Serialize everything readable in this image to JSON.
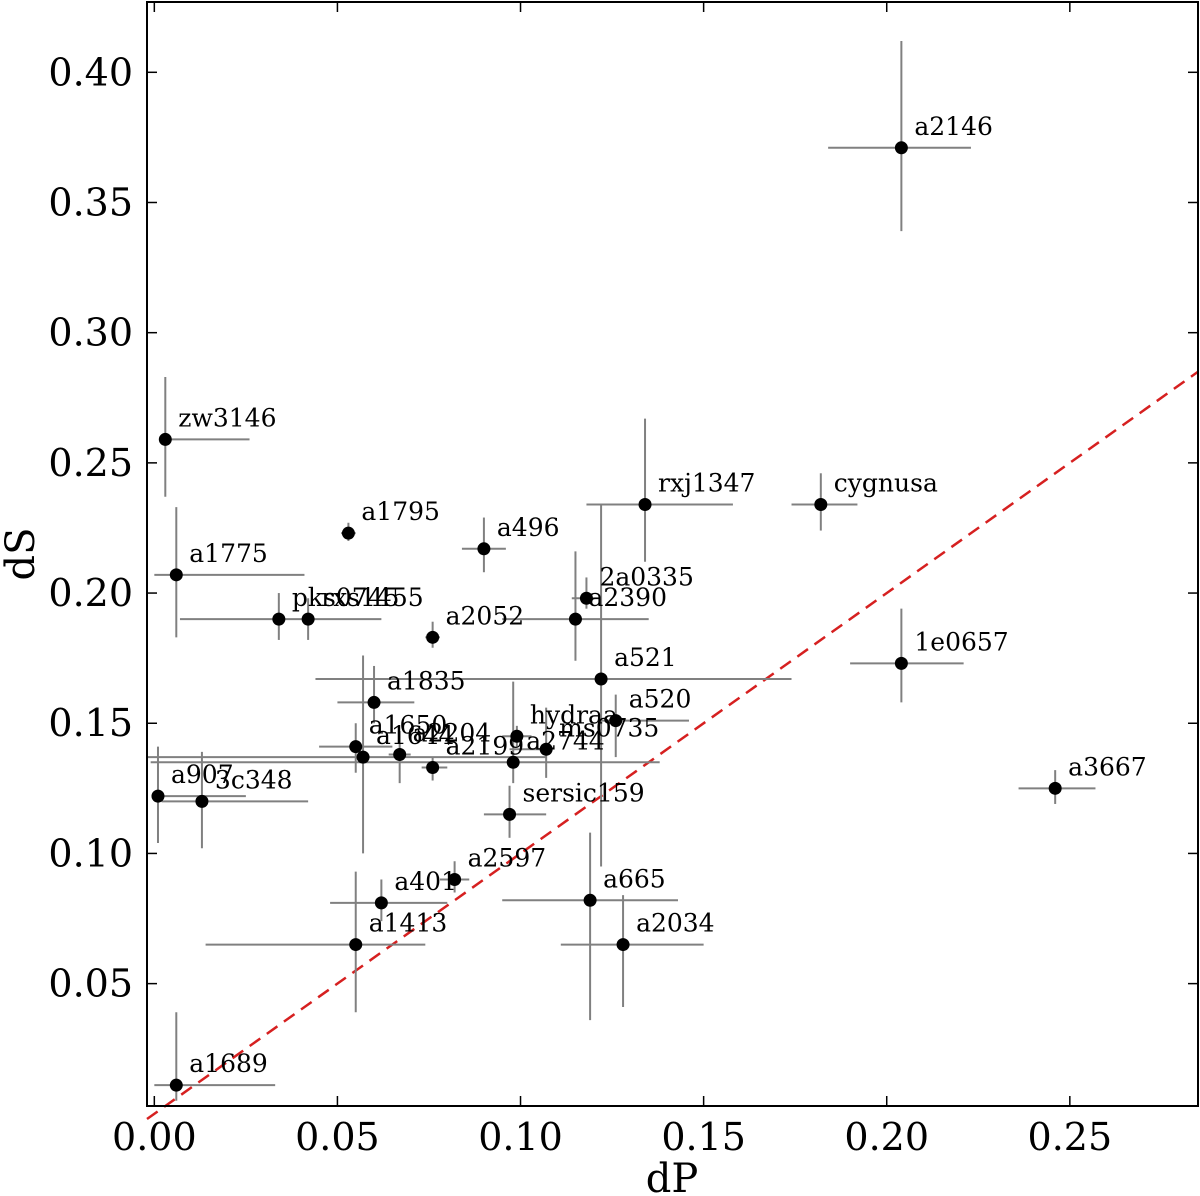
{
  "chart_data": {
    "type": "scatter",
    "title": "",
    "xlabel": "dP",
    "ylabel": "dS",
    "xlim": [
      -0.002,
      0.285
    ],
    "ylim": [
      0.003,
      0.427
    ],
    "xticks": [
      0.0,
      0.05,
      0.1,
      0.15,
      0.2,
      0.25
    ],
    "xtick_labels": [
      "0.00",
      "0.05",
      "0.10",
      "0.15",
      "0.20",
      "0.25"
    ],
    "yticks": [
      0.05,
      0.1,
      0.15,
      0.2,
      0.25,
      0.3,
      0.35,
      0.4
    ],
    "ytick_labels": [
      "0.05",
      "0.10",
      "0.15",
      "0.20",
      "0.25",
      "0.30",
      "0.35",
      "0.40"
    ],
    "grid": false,
    "reference_line": {
      "style": "dashed",
      "color": "#d62020",
      "x": [
        -0.002,
        0.285
      ],
      "y": [
        -0.002,
        0.285
      ]
    },
    "points": [
      {
        "name": "a2146",
        "x": 0.204,
        "y": 0.371,
        "xerr_lo": 0.02,
        "xerr_hi": 0.019,
        "yerr_lo": 0.032,
        "yerr_hi": 0.041
      },
      {
        "name": "zw3146",
        "x": 0.003,
        "y": 0.259,
        "xerr_lo": 0.0,
        "xerr_hi": 0.023,
        "yerr_lo": 0.022,
        "yerr_hi": 0.024
      },
      {
        "name": "rxj1347",
        "x": 0.134,
        "y": 0.234,
        "xerr_lo": 0.016,
        "xerr_hi": 0.024,
        "yerr_lo": 0.022,
        "yerr_hi": 0.033
      },
      {
        "name": "cygnusa",
        "x": 0.182,
        "y": 0.234,
        "xerr_lo": 0.008,
        "xerr_hi": 0.01,
        "yerr_lo": 0.01,
        "yerr_hi": 0.012
      },
      {
        "name": "a1795",
        "x": 0.053,
        "y": 0.223,
        "xerr_lo": 0.002,
        "xerr_hi": 0.002,
        "yerr_lo": 0.003,
        "yerr_hi": 0.004
      },
      {
        "name": "a496",
        "x": 0.09,
        "y": 0.217,
        "xerr_lo": 0.006,
        "xerr_hi": 0.006,
        "yerr_lo": 0.009,
        "yerr_hi": 0.012
      },
      {
        "name": "a1775",
        "x": 0.006,
        "y": 0.207,
        "xerr_lo": 0.006,
        "xerr_hi": 0.035,
        "yerr_lo": 0.024,
        "yerr_hi": 0.026
      },
      {
        "name": "2a0335",
        "x": 0.118,
        "y": 0.198,
        "xerr_lo": 0.004,
        "xerr_hi": 0.004,
        "yerr_lo": 0.004,
        "yerr_hi": 0.008
      },
      {
        "name": "a2390",
        "x": 0.115,
        "y": 0.19,
        "xerr_lo": 0.02,
        "xerr_hi": 0.02,
        "yerr_lo": 0.016,
        "yerr_hi": 0.026
      },
      {
        "name": "pks0745",
        "x": 0.034,
        "y": 0.19,
        "xerr_lo": 0.0,
        "xerr_hi": 0.0,
        "yerr_lo": 0.008,
        "yerr_hi": 0.01
      },
      {
        "name": "rxs1455",
        "x": 0.042,
        "y": 0.19,
        "xerr_lo": 0.035,
        "xerr_hi": 0.02,
        "yerr_lo": 0.008,
        "yerr_hi": 0.008
      },
      {
        "name": "a2052",
        "x": 0.076,
        "y": 0.183,
        "xerr_lo": 0.002,
        "xerr_hi": 0.002,
        "yerr_lo": 0.004,
        "yerr_hi": 0.006
      },
      {
        "name": "1e0657",
        "x": 0.204,
        "y": 0.173,
        "xerr_lo": 0.014,
        "xerr_hi": 0.017,
        "yerr_lo": 0.015,
        "yerr_hi": 0.021
      },
      {
        "name": "a521",
        "x": 0.122,
        "y": 0.167,
        "xerr_lo": 0.078,
        "xerr_hi": 0.052,
        "yerr_lo": 0.072,
        "yerr_hi": 0.067
      },
      {
        "name": "a1835",
        "x": 0.06,
        "y": 0.158,
        "xerr_lo": 0.01,
        "xerr_hi": 0.011,
        "yerr_lo": 0.008,
        "yerr_hi": 0.014
      },
      {
        "name": "a520",
        "x": 0.126,
        "y": 0.151,
        "xerr_lo": 0.005,
        "xerr_hi": 0.02,
        "yerr_lo": 0.014,
        "yerr_hi": 0.01
      },
      {
        "name": "hydraa",
        "x": 0.099,
        "y": 0.145,
        "xerr_lo": 0.004,
        "xerr_hi": 0.004,
        "yerr_lo": 0.004,
        "yerr_hi": 0.004
      },
      {
        "name": "ms0735",
        "x": 0.107,
        "y": 0.14,
        "xerr_lo": 0.01,
        "xerr_hi": 0.0,
        "yerr_lo": 0.011,
        "yerr_hi": 0.016
      },
      {
        "name": "a1650",
        "x": 0.055,
        "y": 0.141,
        "xerr_lo": 0.01,
        "xerr_hi": 0.01,
        "yerr_lo": 0.01,
        "yerr_hi": 0.009
      },
      {
        "name": "a1644",
        "x": 0.057,
        "y": 0.137,
        "xerr_lo": 0.06,
        "xerr_hi": 0.05,
        "yerr_lo": 0.037,
        "yerr_hi": 0.039
      },
      {
        "name": "a2204",
        "x": 0.067,
        "y": 0.138,
        "xerr_lo": 0.003,
        "xerr_hi": 0.003,
        "yerr_lo": 0.011,
        "yerr_hi": 0.009
      },
      {
        "name": "a2744",
        "x": 0.098,
        "y": 0.135,
        "xerr_lo": 0.099,
        "xerr_hi": 0.04,
        "yerr_lo": 0.008,
        "yerr_hi": 0.031
      },
      {
        "name": "a2199",
        "x": 0.076,
        "y": 0.133,
        "xerr_lo": 0.003,
        "xerr_hi": 0.004,
        "yerr_lo": 0.005,
        "yerr_hi": 0.004
      },
      {
        "name": "a907",
        "x": 0.001,
        "y": 0.122,
        "xerr_lo": 0.0,
        "xerr_hi": 0.024,
        "yerr_lo": 0.018,
        "yerr_hi": 0.019
      },
      {
        "name": "3c348",
        "x": 0.013,
        "y": 0.12,
        "xerr_lo": 0.011,
        "xerr_hi": 0.029,
        "yerr_lo": 0.018,
        "yerr_hi": 0.019
      },
      {
        "name": "a3667",
        "x": 0.246,
        "y": 0.125,
        "xerr_lo": 0.01,
        "xerr_hi": 0.011,
        "yerr_lo": 0.006,
        "yerr_hi": 0.007
      },
      {
        "name": "sersic159",
        "x": 0.097,
        "y": 0.115,
        "xerr_lo": 0.007,
        "xerr_hi": 0.01,
        "yerr_lo": 0.009,
        "yerr_hi": 0.011
      },
      {
        "name": "a2597",
        "x": 0.082,
        "y": 0.09,
        "xerr_lo": 0.004,
        "xerr_hi": 0.004,
        "yerr_lo": 0.005,
        "yerr_hi": 0.007
      },
      {
        "name": "a401",
        "x": 0.062,
        "y": 0.081,
        "xerr_lo": 0.014,
        "xerr_hi": 0.018,
        "yerr_lo": 0.007,
        "yerr_hi": 0.009
      },
      {
        "name": "a665",
        "x": 0.119,
        "y": 0.082,
        "xerr_lo": 0.024,
        "xerr_hi": 0.024,
        "yerr_lo": 0.046,
        "yerr_hi": 0.026
      },
      {
        "name": "a1413",
        "x": 0.055,
        "y": 0.065,
        "xerr_lo": 0.041,
        "xerr_hi": 0.019,
        "yerr_lo": 0.026,
        "yerr_hi": 0.028
      },
      {
        "name": "a2034",
        "x": 0.128,
        "y": 0.065,
        "xerr_lo": 0.017,
        "xerr_hi": 0.022,
        "yerr_lo": 0.024,
        "yerr_hi": 0.019
      },
      {
        "name": "a1689",
        "x": 0.006,
        "y": 0.011,
        "xerr_lo": 0.006,
        "xerr_hi": 0.027,
        "yerr_lo": 0.006,
        "yerr_hi": 0.028
      }
    ]
  }
}
